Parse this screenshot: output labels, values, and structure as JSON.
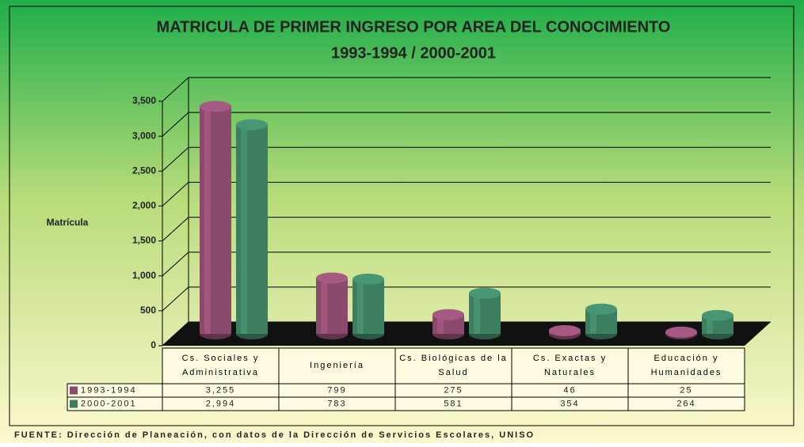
{
  "chart_data": {
    "type": "bar",
    "title": "MATRICULA DE PRIMER INGRESO POR AREA DEL CONOCIMIENTO",
    "subtitle": "1993-1994 / 2000-2001",
    "y_label": "Matrícula",
    "categories": [
      "Cs. Sociales y Administrativa",
      "Ingeniería",
      "Cs. Biológicas de la Salud",
      "Cs. Exactas y Naturales",
      "Educación y Humanidades"
    ],
    "series": [
      {
        "name": "1993-1994",
        "color": "#8a4a6c",
        "values": [
          3255,
          799,
          275,
          46,
          25
        ],
        "value_labels": [
          "3,255",
          "799",
          "275",
          "46",
          "25"
        ]
      },
      {
        "name": "2000-2001",
        "color": "#3d7d60",
        "values": [
          2994,
          783,
          581,
          354,
          264
        ],
        "value_labels": [
          "2,994",
          "783",
          "581",
          "354",
          "264"
        ]
      }
    ],
    "ylim": [
      0,
      3500
    ],
    "yticks": [
      0,
      500,
      {
        "value": 1000,
        "label": "1,000"
      },
      {
        "value": 1500,
        "label": "1,500"
      },
      {
        "value": 2000,
        "label": "2,000"
      },
      {
        "value": 2500,
        "label": "2,500"
      },
      {
        "value": 3000,
        "label": "3,000"
      },
      {
        "value": 3500,
        "label": "3,500"
      }
    ],
    "grid": true,
    "source": "FUENTE: Dirección de Planeación, con datos de la Dirección de Servicios Escolares, UNISO"
  }
}
